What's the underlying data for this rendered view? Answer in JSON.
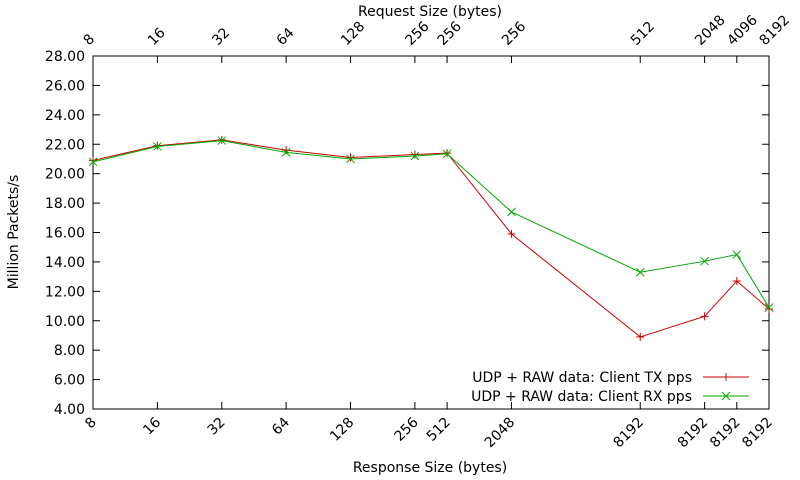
{
  "chart_data": {
    "type": "line",
    "title": "",
    "xlabel": "Response Size (bytes)",
    "x2label": "Request Size (bytes)",
    "ylabel": "Million Packets/s",
    "ylim": [
      4.0,
      28.0
    ],
    "yticks": [
      "4.00",
      "6.00",
      "8.00",
      "10.00",
      "12.00",
      "14.00",
      "16.00",
      "18.00",
      "20.00",
      "22.00",
      "24.00",
      "26.00",
      "28.00"
    ],
    "x_positions": [
      0,
      1,
      2,
      3,
      4,
      5,
      5.5,
      6.5,
      8.5,
      9.5,
      10,
      10.5
    ],
    "bottom_labels": [
      "8",
      "16",
      "32",
      "64",
      "128",
      "256",
      "512",
      "2048",
      "8192",
      "8192",
      "8192",
      "8192"
    ],
    "top_labels": [
      "8",
      "16",
      "32",
      "64",
      "128",
      "256",
      "256",
      "256",
      "512",
      "2048",
      "4096",
      "8192"
    ],
    "grid": false,
    "legend_position": "bottom-right",
    "series": [
      {
        "name": "UDP + RAW data: Client TX pps",
        "color": "#cc0000",
        "marker": "plus",
        "values": [
          20.9,
          21.9,
          22.3,
          21.6,
          21.1,
          21.3,
          21.4,
          15.9,
          8.9,
          10.3,
          12.7,
          10.8
        ]
      },
      {
        "name": "UDP + RAW data: Client RX pps",
        "color": "#00aa00",
        "marker": "x",
        "values": [
          20.8,
          21.85,
          22.25,
          21.45,
          21.0,
          21.2,
          21.35,
          17.4,
          13.3,
          14.05,
          14.5,
          10.9
        ]
      }
    ]
  }
}
